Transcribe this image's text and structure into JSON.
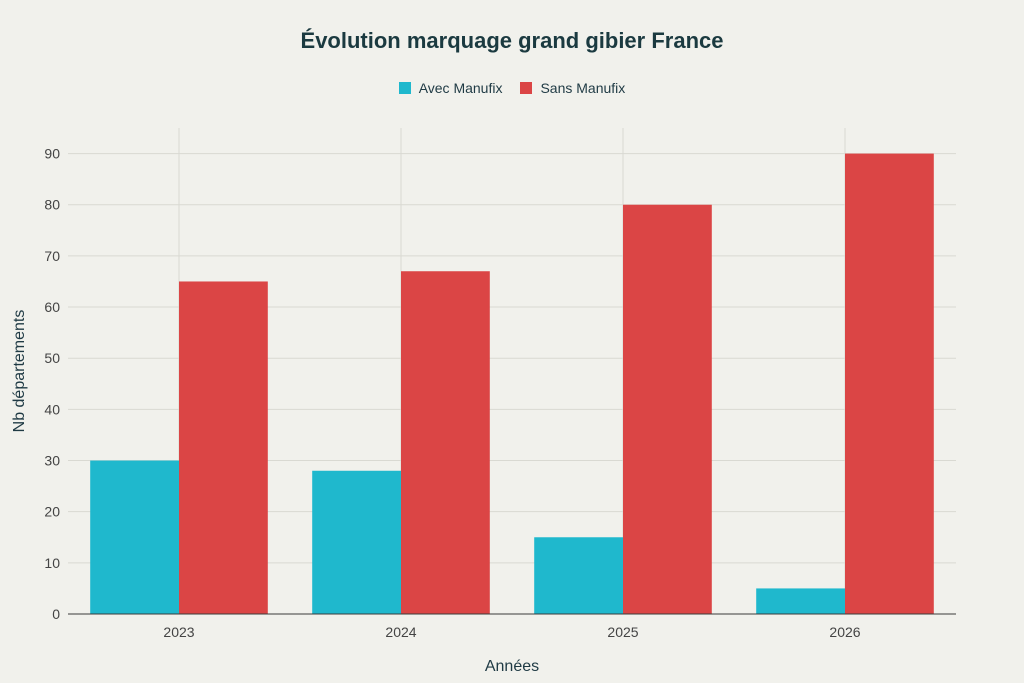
{
  "chart_data": {
    "type": "bar",
    "title": "Évolution marquage grand gibier France",
    "xlabel": "Années",
    "ylabel": "Nb départements",
    "categories": [
      "2023",
      "2024",
      "2025",
      "2026"
    ],
    "series": [
      {
        "name": "Avec Manufix",
        "color": "#1fb8cd",
        "values": [
          30,
          28,
          15,
          5
        ]
      },
      {
        "name": "Sans Manufix",
        "color": "#db4545",
        "values": [
          65,
          67,
          80,
          90
        ]
      }
    ],
    "ylim": [
      0,
      95
    ],
    "yticks": [
      0,
      10,
      20,
      30,
      40,
      50,
      60,
      70,
      80,
      90
    ],
    "grid": true,
    "legend_position": "top-center"
  }
}
